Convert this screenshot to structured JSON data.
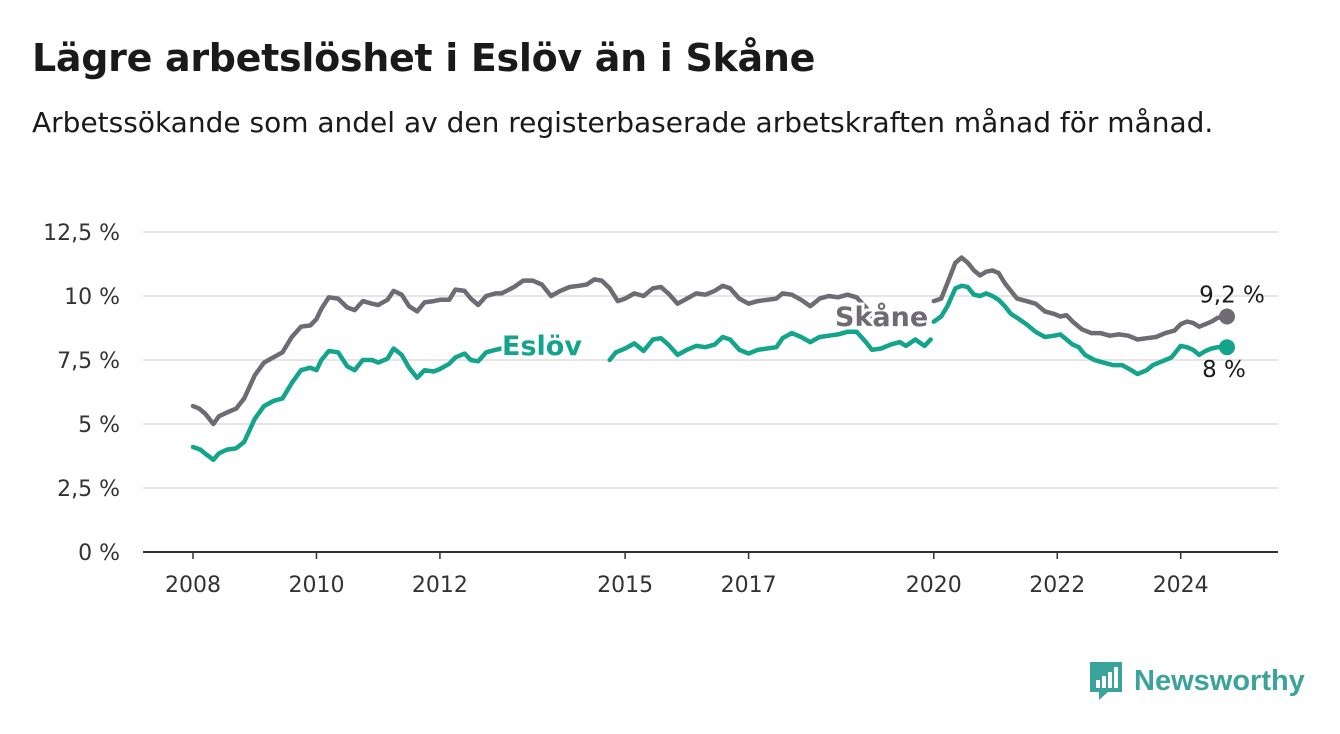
{
  "title": "Lägre arbetslöshet i Eslöv än i Skåne",
  "subtitle": "Arbetssökande som andel av den registerbaserade arbetskraften månad för månad.",
  "brand": {
    "name": "Newsworthy",
    "icon": "newsworthy-logo-icon",
    "color": "#3aa39b"
  },
  "chart_data": {
    "type": "line",
    "ylim": [
      0,
      12.5
    ],
    "yticks": [
      0,
      2.5,
      5,
      7.5,
      10,
      12.5
    ],
    "ytick_labels": [
      "0 %",
      "2,5 %",
      "5 %",
      "7,5 %",
      "10 %",
      "12,5 %"
    ],
    "xticks": [
      2008,
      2010,
      2012,
      2015,
      2017,
      2020,
      2022,
      2024
    ],
    "xtick_labels": [
      "2008",
      "2010",
      "2012",
      "2015",
      "2017",
      "2020",
      "2022",
      "2024"
    ],
    "xlim": [
      2008,
      2024.75
    ],
    "grid": true,
    "series": [
      {
        "name": "Skåne",
        "color": "#6e6b74",
        "end_label": "9,2 %",
        "points": [
          [
            2008.0,
            5.7
          ],
          [
            2008.1,
            5.6
          ],
          [
            2008.2,
            5.4
          ],
          [
            2008.33,
            5.0
          ],
          [
            2008.42,
            5.3
          ],
          [
            2008.55,
            5.45
          ],
          [
            2008.7,
            5.6
          ],
          [
            2008.83,
            6.0
          ],
          [
            2009.0,
            6.9
          ],
          [
            2009.15,
            7.4
          ],
          [
            2009.3,
            7.6
          ],
          [
            2009.45,
            7.8
          ],
          [
            2009.6,
            8.4
          ],
          [
            2009.75,
            8.8
          ],
          [
            2009.9,
            8.85
          ],
          [
            2010.0,
            9.1
          ],
          [
            2010.08,
            9.5
          ],
          [
            2010.2,
            9.95
          ],
          [
            2010.35,
            9.9
          ],
          [
            2010.5,
            9.55
          ],
          [
            2010.62,
            9.45
          ],
          [
            2010.75,
            9.8
          ],
          [
            2010.9,
            9.7
          ],
          [
            2011.0,
            9.65
          ],
          [
            2011.15,
            9.85
          ],
          [
            2011.25,
            10.2
          ],
          [
            2011.38,
            10.05
          ],
          [
            2011.5,
            9.6
          ],
          [
            2011.63,
            9.4
          ],
          [
            2011.75,
            9.75
          ],
          [
            2011.9,
            9.8
          ],
          [
            2012.0,
            9.85
          ],
          [
            2012.15,
            9.85
          ],
          [
            2012.25,
            10.25
          ],
          [
            2012.4,
            10.2
          ],
          [
            2012.5,
            9.9
          ],
          [
            2012.62,
            9.65
          ],
          [
            2012.75,
            10.0
          ],
          [
            2012.9,
            10.1
          ],
          [
            2013.0,
            10.1
          ],
          [
            2013.2,
            10.35
          ],
          [
            2013.35,
            10.6
          ],
          [
            2013.5,
            10.6
          ],
          [
            2013.65,
            10.45
          ],
          [
            2013.8,
            10.0
          ],
          [
            2013.95,
            10.2
          ],
          [
            2014.1,
            10.35
          ],
          [
            2014.25,
            10.4
          ],
          [
            2014.38,
            10.45
          ],
          [
            2014.5,
            10.65
          ],
          [
            2014.62,
            10.6
          ],
          [
            2014.75,
            10.3
          ],
          [
            2014.88,
            9.8
          ],
          [
            2015.0,
            9.9
          ],
          [
            2015.15,
            10.1
          ],
          [
            2015.3,
            10.0
          ],
          [
            2015.45,
            10.3
          ],
          [
            2015.58,
            10.35
          ],
          [
            2015.7,
            10.1
          ],
          [
            2015.85,
            9.7
          ],
          [
            2016.0,
            9.9
          ],
          [
            2016.15,
            10.1
          ],
          [
            2016.3,
            10.05
          ],
          [
            2016.45,
            10.2
          ],
          [
            2016.58,
            10.4
          ],
          [
            2016.7,
            10.3
          ],
          [
            2016.85,
            9.9
          ],
          [
            2017.0,
            9.7
          ],
          [
            2017.15,
            9.8
          ],
          [
            2017.3,
            9.85
          ],
          [
            2017.45,
            9.9
          ],
          [
            2017.55,
            10.1
          ],
          [
            2017.7,
            10.05
          ],
          [
            2017.85,
            9.85
          ],
          [
            2018.0,
            9.6
          ],
          [
            2018.15,
            9.9
          ],
          [
            2018.3,
            10.0
          ],
          [
            2018.45,
            9.95
          ],
          [
            2018.6,
            10.05
          ],
          [
            2018.75,
            9.95
          ],
          [
            2018.9,
            9.55
          ],
          [
            2019.0,
            9.2
          ]
        ],
        "points_b": [
          [
            2020.0,
            9.8
          ],
          [
            2020.12,
            9.9
          ],
          [
            2020.22,
            10.5
          ],
          [
            2020.35,
            11.3
          ],
          [
            2020.45,
            11.5
          ],
          [
            2020.55,
            11.3
          ],
          [
            2020.65,
            11.0
          ],
          [
            2020.75,
            10.8
          ],
          [
            2020.85,
            10.95
          ],
          [
            2020.95,
            11.0
          ],
          [
            2021.05,
            10.9
          ],
          [
            2021.15,
            10.5
          ],
          [
            2021.25,
            10.2
          ],
          [
            2021.35,
            9.9
          ],
          [
            2021.5,
            9.8
          ],
          [
            2021.65,
            9.7
          ],
          [
            2021.8,
            9.4
          ],
          [
            2021.95,
            9.3
          ],
          [
            2022.05,
            9.2
          ],
          [
            2022.15,
            9.25
          ],
          [
            2022.25,
            9.0
          ],
          [
            2022.4,
            8.7
          ],
          [
            2022.55,
            8.55
          ],
          [
            2022.7,
            8.55
          ],
          [
            2022.85,
            8.45
          ],
          [
            2023.0,
            8.5
          ],
          [
            2023.15,
            8.45
          ],
          [
            2023.3,
            8.3
          ],
          [
            2023.45,
            8.35
          ],
          [
            2023.6,
            8.4
          ],
          [
            2023.75,
            8.55
          ],
          [
            2023.9,
            8.65
          ],
          [
            2024.0,
            8.9
          ],
          [
            2024.1,
            9.0
          ],
          [
            2024.2,
            8.95
          ],
          [
            2024.3,
            8.8
          ],
          [
            2024.4,
            8.9
          ],
          [
            2024.5,
            9.0
          ],
          [
            2024.6,
            9.15
          ],
          [
            2024.75,
            9.2
          ]
        ]
      },
      {
        "name": "Eslöv",
        "color": "#13a48c",
        "end_label": "8 %",
        "points": [
          [
            2008.0,
            4.1
          ],
          [
            2008.12,
            4.0
          ],
          [
            2008.22,
            3.8
          ],
          [
            2008.33,
            3.6
          ],
          [
            2008.42,
            3.85
          ],
          [
            2008.55,
            4.0
          ],
          [
            2008.7,
            4.05
          ],
          [
            2008.83,
            4.3
          ],
          [
            2009.0,
            5.2
          ],
          [
            2009.15,
            5.7
          ],
          [
            2009.3,
            5.9
          ],
          [
            2009.45,
            6.0
          ],
          [
            2009.6,
            6.6
          ],
          [
            2009.75,
            7.1
          ],
          [
            2009.9,
            7.2
          ],
          [
            2010.0,
            7.1
          ],
          [
            2010.08,
            7.5
          ],
          [
            2010.2,
            7.85
          ],
          [
            2010.35,
            7.8
          ],
          [
            2010.5,
            7.25
          ],
          [
            2010.62,
            7.1
          ],
          [
            2010.75,
            7.5
          ],
          [
            2010.9,
            7.5
          ],
          [
            2011.0,
            7.4
          ],
          [
            2011.15,
            7.55
          ],
          [
            2011.25,
            7.95
          ],
          [
            2011.38,
            7.7
          ],
          [
            2011.5,
            7.2
          ],
          [
            2011.63,
            6.8
          ],
          [
            2011.75,
            7.1
          ],
          [
            2011.9,
            7.05
          ],
          [
            2012.0,
            7.15
          ],
          [
            2012.15,
            7.35
          ],
          [
            2012.25,
            7.6
          ],
          [
            2012.4,
            7.75
          ],
          [
            2012.5,
            7.5
          ],
          [
            2012.62,
            7.45
          ],
          [
            2012.75,
            7.8
          ],
          [
            2012.9,
            7.9
          ],
          [
            2013.0,
            7.95
          ],
          [
            2013.2,
            8.05
          ],
          [
            2013.35,
            8.25
          ]
        ],
        "points_b": [
          [
            2014.75,
            7.5
          ],
          [
            2014.85,
            7.8
          ],
          [
            2015.0,
            7.95
          ],
          [
            2015.15,
            8.15
          ],
          [
            2015.3,
            7.85
          ],
          [
            2015.45,
            8.3
          ],
          [
            2015.58,
            8.35
          ],
          [
            2015.7,
            8.1
          ],
          [
            2015.85,
            7.7
          ],
          [
            2016.0,
            7.9
          ],
          [
            2016.15,
            8.05
          ],
          [
            2016.3,
            8.0
          ],
          [
            2016.45,
            8.1
          ],
          [
            2016.58,
            8.4
          ],
          [
            2016.7,
            8.3
          ],
          [
            2016.85,
            7.9
          ],
          [
            2017.0,
            7.75
          ],
          [
            2017.15,
            7.9
          ],
          [
            2017.3,
            7.95
          ],
          [
            2017.45,
            8.0
          ],
          [
            2017.55,
            8.35
          ],
          [
            2017.7,
            8.55
          ],
          [
            2017.85,
            8.4
          ],
          [
            2018.0,
            8.2
          ],
          [
            2018.15,
            8.4
          ],
          [
            2018.3,
            8.45
          ],
          [
            2018.45,
            8.5
          ],
          [
            2018.6,
            8.6
          ],
          [
            2018.75,
            8.6
          ],
          [
            2018.9,
            8.2
          ],
          [
            2019.0,
            7.9
          ],
          [
            2019.15,
            7.95
          ],
          [
            2019.3,
            8.1
          ],
          [
            2019.45,
            8.2
          ],
          [
            2019.55,
            8.05
          ],
          [
            2019.7,
            8.3
          ],
          [
            2019.85,
            8.05
          ],
          [
            2019.95,
            8.3
          ]
        ],
        "points_c": [
          [
            2020.0,
            9.0
          ],
          [
            2020.12,
            9.2
          ],
          [
            2020.22,
            9.6
          ],
          [
            2020.35,
            10.3
          ],
          [
            2020.45,
            10.4
          ],
          [
            2020.55,
            10.35
          ],
          [
            2020.65,
            10.05
          ],
          [
            2020.75,
            10.0
          ],
          [
            2020.85,
            10.1
          ],
          [
            2020.95,
            10.0
          ],
          [
            2021.05,
            9.85
          ],
          [
            2021.15,
            9.6
          ],
          [
            2021.25,
            9.3
          ],
          [
            2021.35,
            9.15
          ],
          [
            2021.5,
            8.9
          ],
          [
            2021.65,
            8.6
          ],
          [
            2021.8,
            8.4
          ],
          [
            2021.95,
            8.45
          ],
          [
            2022.05,
            8.5
          ],
          [
            2022.15,
            8.3
          ],
          [
            2022.25,
            8.1
          ],
          [
            2022.35,
            8.0
          ],
          [
            2022.45,
            7.7
          ],
          [
            2022.6,
            7.5
          ],
          [
            2022.75,
            7.4
          ],
          [
            2022.9,
            7.3
          ],
          [
            2023.05,
            7.3
          ],
          [
            2023.2,
            7.1
          ],
          [
            2023.3,
            6.95
          ],
          [
            2023.45,
            7.1
          ],
          [
            2023.55,
            7.3
          ],
          [
            2023.7,
            7.45
          ],
          [
            2023.85,
            7.6
          ],
          [
            2024.0,
            8.05
          ],
          [
            2024.1,
            8.0
          ],
          [
            2024.2,
            7.9
          ],
          [
            2024.3,
            7.7
          ],
          [
            2024.4,
            7.85
          ],
          [
            2024.5,
            7.95
          ],
          [
            2024.6,
            8.0
          ],
          [
            2024.75,
            8.0
          ]
        ]
      }
    ]
  }
}
